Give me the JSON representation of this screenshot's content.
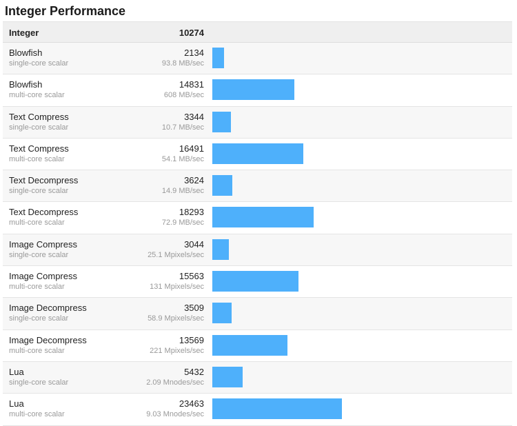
{
  "title": "Integer Performance",
  "header": {
    "label": "Integer",
    "score": "10274"
  },
  "colors": {
    "bar": "#4eb0fb",
    "header_bg": "#efefef",
    "row_alt_bg": "#f7f7f7",
    "secondary_text": "#999999"
  },
  "chart_data": {
    "type": "bar",
    "orientation": "horizontal",
    "title": "Integer Performance",
    "categories": [
      "Blowfish (single-core scalar)",
      "Blowfish (multi-core scalar)",
      "Text Compress (single-core scalar)",
      "Text Compress (multi-core scalar)",
      "Text Decompress (single-core scalar)",
      "Text Decompress (multi-core scalar)",
      "Image Compress (single-core scalar)",
      "Image Compress (multi-core scalar)",
      "Image Decompress (single-core scalar)",
      "Image Decompress (multi-core scalar)",
      "Lua (single-core scalar)",
      "Lua (multi-core scalar)"
    ],
    "values": [
      2134,
      14831,
      3344,
      16491,
      3624,
      18293,
      3044,
      15563,
      3509,
      13569,
      5432,
      23463
    ],
    "bar_scale_max": 23463,
    "rows": [
      {
        "name": "Blowfish",
        "desc": "single-core scalar",
        "score": 2134,
        "score_label": "2134",
        "rate": "93.8 MB/sec"
      },
      {
        "name": "Blowfish",
        "desc": "multi-core scalar",
        "score": 14831,
        "score_label": "14831",
        "rate": "608 MB/sec"
      },
      {
        "name": "Text Compress",
        "desc": "single-core scalar",
        "score": 3344,
        "score_label": "3344",
        "rate": "10.7 MB/sec"
      },
      {
        "name": "Text Compress",
        "desc": "multi-core scalar",
        "score": 16491,
        "score_label": "16491",
        "rate": "54.1 MB/sec"
      },
      {
        "name": "Text Decompress",
        "desc": "single-core scalar",
        "score": 3624,
        "score_label": "3624",
        "rate": "14.9 MB/sec"
      },
      {
        "name": "Text Decompress",
        "desc": "multi-core scalar",
        "score": 18293,
        "score_label": "18293",
        "rate": "72.9 MB/sec"
      },
      {
        "name": "Image Compress",
        "desc": "single-core scalar",
        "score": 3044,
        "score_label": "3044",
        "rate": "25.1 Mpixels/sec"
      },
      {
        "name": "Image Compress",
        "desc": "multi-core scalar",
        "score": 15563,
        "score_label": "15563",
        "rate": "131 Mpixels/sec"
      },
      {
        "name": "Image Decompress",
        "desc": "single-core scalar",
        "score": 3509,
        "score_label": "3509",
        "rate": "58.9 Mpixels/sec"
      },
      {
        "name": "Image Decompress",
        "desc": "multi-core scalar",
        "score": 13569,
        "score_label": "13569",
        "rate": "221 Mpixels/sec"
      },
      {
        "name": "Lua",
        "desc": "single-core scalar",
        "score": 5432,
        "score_label": "5432",
        "rate": "2.09 Mnodes/sec"
      },
      {
        "name": "Lua",
        "desc": "multi-core scalar",
        "score": 23463,
        "score_label": "23463",
        "rate": "9.03 Mnodes/sec"
      }
    ]
  }
}
